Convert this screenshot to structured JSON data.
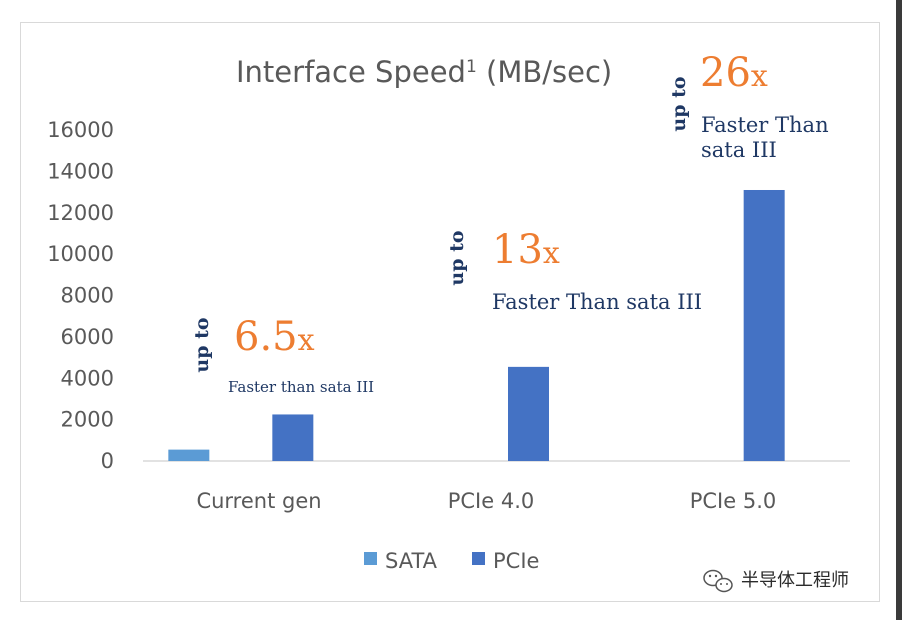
{
  "chart_data": {
    "type": "bar",
    "title": "Interface Speed",
    "title_superscript": "1",
    "title_suffix": " (MB/sec)",
    "categories": [
      "Current gen",
      "PCIe 4.0",
      "PCIe 5.0"
    ],
    "series": [
      {
        "name": "SATA",
        "color": "#5b9bd5",
        "values": [
          550,
          null,
          null
        ]
      },
      {
        "name": "PCIe",
        "color": "#4472c4",
        "values": [
          2250,
          4550,
          13100
        ]
      }
    ],
    "ylim": [
      0,
      16000
    ],
    "yticks": [
      "0",
      "2000",
      "4000",
      "6000",
      "8000",
      "10000",
      "12000",
      "14000",
      "16000"
    ],
    "grid": false,
    "legend_position": "bottom",
    "annotations": [
      {
        "category": "Current gen",
        "prefix": "up to",
        "factor": "6.5",
        "suffix": "x",
        "line1": "Faster than sata III",
        "line2": ""
      },
      {
        "category": "PCIe 4.0",
        "prefix": "up to",
        "factor": "13",
        "suffix": "x",
        "line1": "Faster Than sata III",
        "line2": ""
      },
      {
        "category": "PCIe 5.0",
        "prefix": "up to",
        "factor": "26",
        "suffix": "x",
        "line1": "Faster Than",
        "line2": "sata III"
      }
    ]
  },
  "watermark": {
    "text": "半导体工程师",
    "icon": "wechat-icon"
  }
}
